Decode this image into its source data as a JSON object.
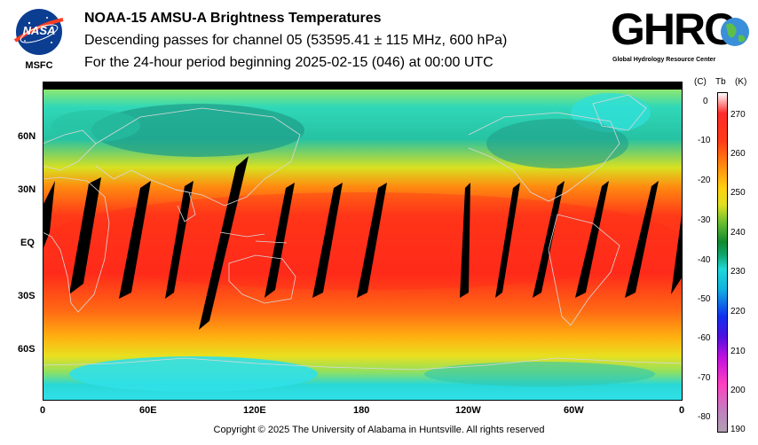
{
  "header": {
    "title": "NOAA-15 AMSU-A Brightness Temperatures",
    "subtitle": "Descending passes for channel 05 (53595.41 ± 115 MHz, 600 hPa)",
    "period": "For the 24-hour period beginning 2025-02-15 (046) at 00:00 UTC"
  },
  "logos": {
    "left": {
      "text": "NASA",
      "caption": "MSFC"
    },
    "right": {
      "text": "GHRC",
      "caption": "Global Hydrology Resource Center"
    }
  },
  "map": {
    "lat_ticks": [
      "60N",
      "30N",
      "EQ",
      "30S",
      "60S"
    ],
    "lon_ticks": [
      "0",
      "60E",
      "120E",
      "180",
      "120W",
      "60W",
      "0"
    ],
    "colors": {
      "cold": "#30e0d8",
      "cool": "#1fa08a",
      "mid": "#d8e020",
      "warm": "#ff8a10",
      "hot": "#ff2a1a",
      "coast": "#d8d8d8",
      "gap": "#000000"
    }
  },
  "colorbar": {
    "header_c": "(C)",
    "header_tb": "Tb",
    "header_k": "(K)",
    "celsius_ticks": [
      "0",
      "-10",
      "-20",
      "-30",
      "-40",
      "-50",
      "-60",
      "-70",
      "-80"
    ],
    "kelvin_ticks": [
      "270",
      "260",
      "250",
      "240",
      "230",
      "220",
      "210",
      "200",
      "190"
    ]
  },
  "footer": {
    "copyright": "Copyright © 2025 The University of Alabama in Huntsville.  All rights reserved"
  }
}
